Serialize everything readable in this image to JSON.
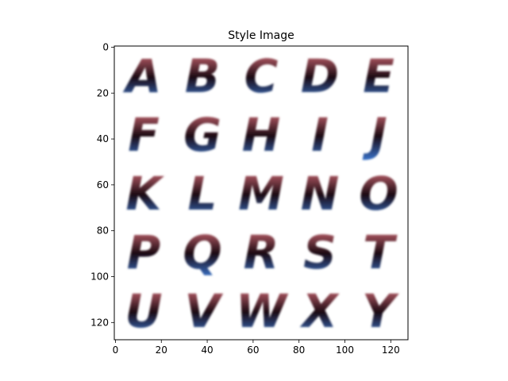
{
  "figure": {
    "title": "Style Image"
  },
  "image_data": {
    "type": "image",
    "xlim": [
      -0.5,
      127.5
    ],
    "ylim": [
      127.5,
      -0.5
    ],
    "x_ticks": [
      0,
      20,
      40,
      60,
      80,
      100,
      120
    ],
    "y_ticks": [
      0,
      20,
      40,
      60,
      80,
      100,
      120
    ],
    "grid": false,
    "rows": [
      [
        "A",
        "B",
        "C",
        "D",
        "E"
      ],
      [
        "F",
        "G",
        "H",
        "I",
        "J"
      ],
      [
        "K",
        "L",
        "M",
        "N",
        "O"
      ],
      [
        "P",
        "Q",
        "R",
        "S",
        "T"
      ],
      [
        "U",
        "V",
        "W",
        "X",
        "Y"
      ]
    ],
    "colors": {
      "top": "#e0707c",
      "middle": "#1a0a12",
      "bottom": "#3a7ad8"
    }
  }
}
